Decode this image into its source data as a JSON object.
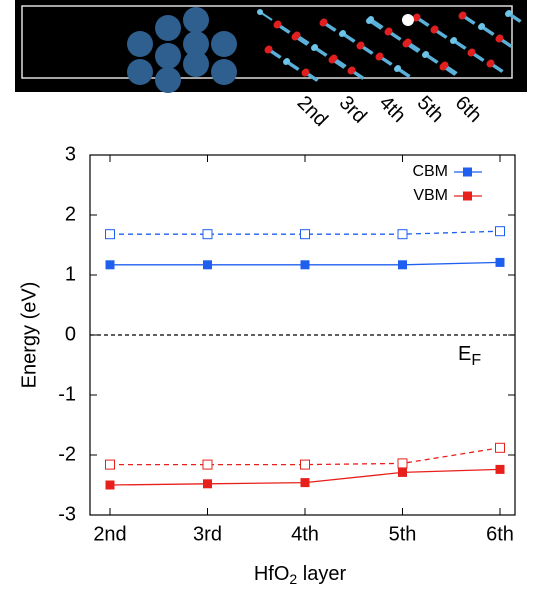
{
  "structure": {
    "layer_labels": [
      "2nd",
      "3rd",
      "4th",
      "5th",
      "6th"
    ]
  },
  "chart_data": {
    "type": "line",
    "y_label": "Energy (eV)",
    "x_label": {
      "main": "HfO",
      "sub": "2",
      "rest": " layer"
    },
    "annotation": {
      "main": "E",
      "sub": "F"
    },
    "categories": [
      "2nd",
      "3rd",
      "4th",
      "5th",
      "6th"
    ],
    "ylim": [
      -3,
      3
    ],
    "yticks": [
      -3,
      -2,
      -1,
      0,
      1,
      2,
      3
    ],
    "reference_line": 0,
    "series": [
      {
        "name": "CBM",
        "color": "#1f5ff0",
        "style": "solid",
        "marker": "filled",
        "values": [
          1.17,
          1.17,
          1.17,
          1.17,
          1.21
        ]
      },
      {
        "color": "#1f5ff0",
        "style": "dashed",
        "marker": "open",
        "values": [
          1.68,
          1.68,
          1.68,
          1.68,
          1.73
        ]
      },
      {
        "name": "VBM",
        "color": "#e8201c",
        "style": "solid",
        "marker": "filled",
        "values": [
          -2.5,
          -2.48,
          -2.46,
          -2.29,
          -2.24
        ]
      },
      {
        "color": "#e8201c",
        "style": "dashed",
        "marker": "open",
        "values": [
          -2.16,
          -2.16,
          -2.16,
          -2.14,
          -1.88
        ]
      }
    ]
  }
}
